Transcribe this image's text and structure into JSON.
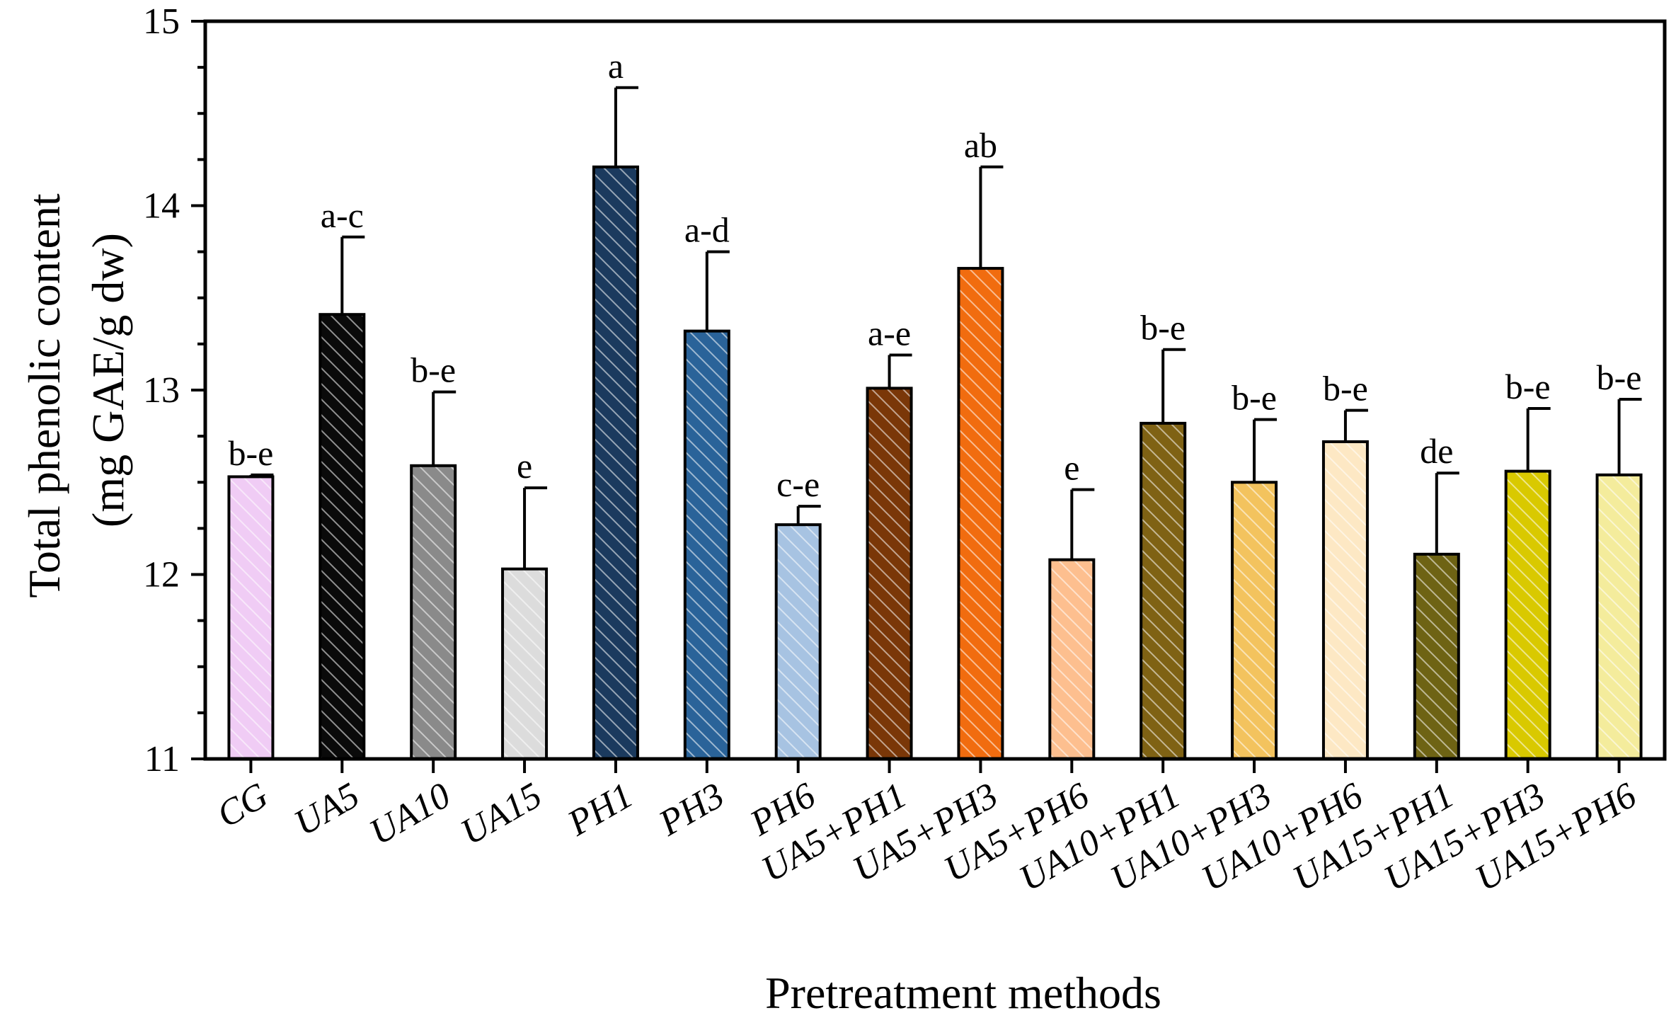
{
  "chart_data": {
    "type": "bar",
    "title": "",
    "xlabel": "Pretreatment methods",
    "ylabel_line1": "Total phenolic content",
    "ylabel_line2": "(mg GAE/g dw)",
    "ylim": [
      11,
      15
    ],
    "yticks": [
      11,
      12,
      13,
      14,
      15
    ],
    "categories": [
      "CG",
      "UA5",
      "UA10",
      "UA15",
      "PH1",
      "PH3",
      "PH6",
      "UA5+PH1",
      "UA5+PH3",
      "UA5+PH6",
      "UA10+PH1",
      "UA10+PH3",
      "UA10+PH6",
      "UA15+PH1",
      "UA15+PH3",
      "UA15+PH6"
    ],
    "values": [
      12.53,
      13.41,
      12.59,
      12.03,
      14.21,
      13.32,
      12.27,
      13.01,
      13.66,
      12.08,
      12.82,
      12.5,
      12.72,
      12.11,
      12.56,
      12.54
    ],
    "errors": [
      0.01,
      0.42,
      0.4,
      0.44,
      0.43,
      0.43,
      0.1,
      0.18,
      0.55,
      0.38,
      0.4,
      0.34,
      0.17,
      0.44,
      0.34,
      0.41
    ],
    "significance": [
      "b-e",
      "a-c",
      "b-e",
      "e",
      "a",
      "a-d",
      "c-e",
      "a-e",
      "ab",
      "e",
      "b-e",
      "b-e",
      "b-e",
      "de",
      "b-e",
      "b-e"
    ],
    "colors": [
      "#f0ccf5",
      "#0a0a0a",
      "#8a8a8a",
      "#dcdcdc",
      "#1b3a5e",
      "#2a6399",
      "#a7c3e2",
      "#7a3708",
      "#f16c0f",
      "#fdbf8f",
      "#7f6214",
      "#f3c35e",
      "#fde8c4",
      "#6e6314",
      "#d9c900",
      "#f4ec9c"
    ]
  }
}
